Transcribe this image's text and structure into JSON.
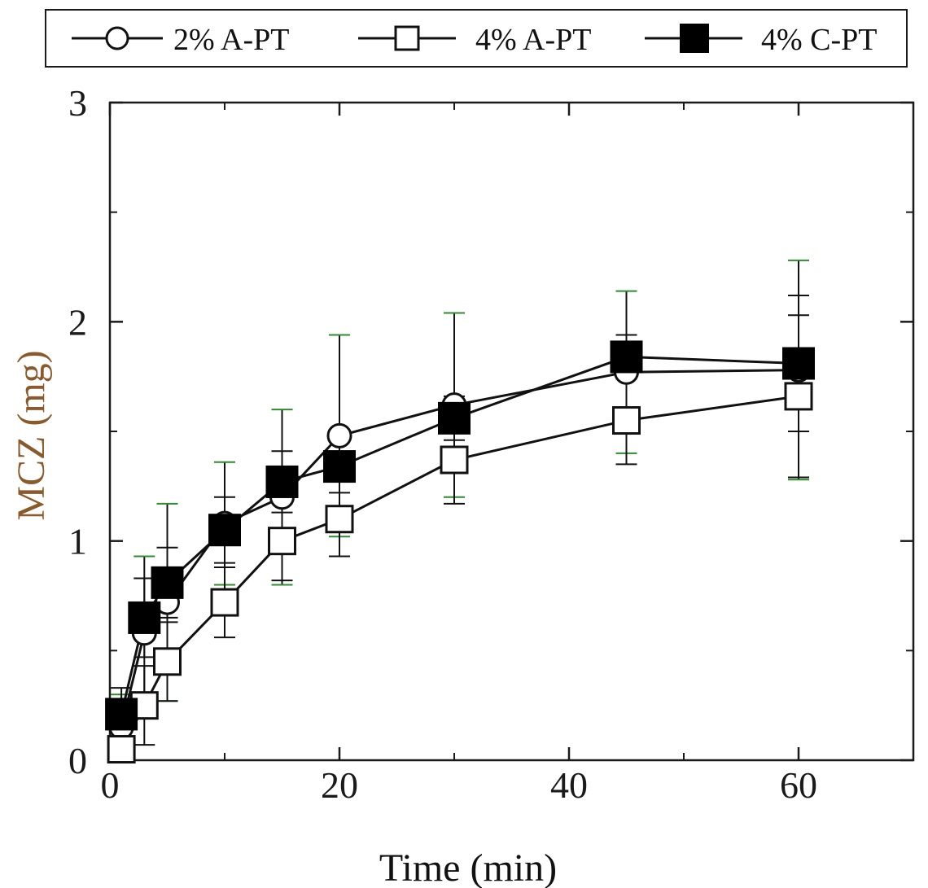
{
  "chart_data": {
    "type": "line",
    "title": "",
    "xlabel": "Time (min)",
    "ylabel": "MCZ (mg)",
    "xlim": [
      0,
      70
    ],
    "ylim": [
      0,
      3
    ],
    "xticks": [
      0,
      20,
      40,
      60
    ],
    "xtick_labels": [
      "0",
      "20",
      "40",
      "60"
    ],
    "yticks": [
      0,
      1,
      2,
      3
    ],
    "ytick_labels": [
      "0",
      "1",
      "2",
      "3"
    ],
    "grid": false,
    "legend_position": "top",
    "x": [
      1,
      3,
      5,
      10,
      15,
      20,
      30,
      45,
      60
    ],
    "series": [
      {
        "name": "2% A-PT",
        "marker": "open-circle",
        "values": [
          0.15,
          0.58,
          0.72,
          1.08,
          1.2,
          1.48,
          1.62,
          1.77,
          1.78
        ],
        "errors": [
          0.15,
          0.35,
          0.45,
          0.28,
          0.4,
          0.46,
          0.42,
          0.37,
          0.5
        ]
      },
      {
        "name": "4% A-PT",
        "marker": "open-square",
        "values": [
          0.05,
          0.25,
          0.45,
          0.72,
          1.0,
          1.1,
          1.37,
          1.55,
          1.66
        ],
        "errors": [
          0.1,
          0.18,
          0.18,
          0.16,
          0.18,
          0.17,
          0.2,
          0.2,
          0.37
        ]
      },
      {
        "name": "4% C-PT",
        "marker": "filled-square",
        "values": [
          0.21,
          0.65,
          0.81,
          1.05,
          1.27,
          1.34,
          1.56,
          1.84,
          1.81
        ],
        "errors": [
          0.12,
          0.18,
          0.16,
          0.15,
          0.14,
          0.12,
          0.1,
          0.1,
          0.31
        ]
      }
    ]
  },
  "colors": {
    "axis": "#1a1a1a",
    "line": "#111111",
    "ylabel": "#8a5a2b",
    "xlabel": "#111111",
    "error_bar_alt": "#2e8b2e",
    "background": "#ffffff"
  }
}
